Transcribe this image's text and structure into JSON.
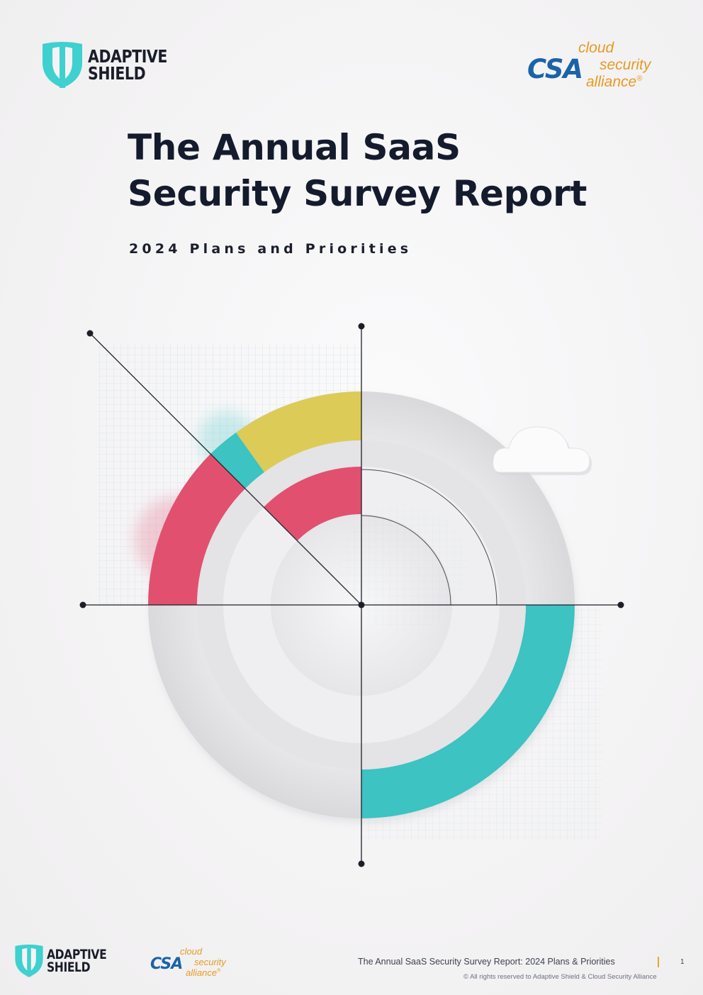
{
  "header": {
    "adaptive_shield_logo": {
      "line1": "ADAPTIVE",
      "line2": "SHIELD"
    },
    "csa_logo": {
      "mark": "CSA",
      "word1": "cloud",
      "word2": "security",
      "word3": "alliance",
      "registered": "®"
    }
  },
  "cover": {
    "title_line1": "The Annual SaaS",
    "title_line2": "Security Survey Report",
    "subtitle": "2024 Plans and Priorities"
  },
  "colors": {
    "title": "#141b2d",
    "pink": "#e2506f",
    "teal": "#3cc3c2",
    "yellow": "#dccb57",
    "csa_blue": "#1b63a8",
    "csa_orange": "#e79a23",
    "shield_teal": "#3fd0d0"
  },
  "footer": {
    "adaptive_shield_logo": {
      "line1": "ADAPTIVE",
      "line2": "SHIELD"
    },
    "csa_logo": {
      "mark": "CSA",
      "word1": "cloud",
      "word2": "security",
      "word3": "alliance",
      "registered": "®"
    },
    "report_title": "The Annual SaaS Security Survey Report: 2024 Plans & Priorities",
    "page_number": "1",
    "copyright": "© All rights reserved to Adaptive Shield & Cloud Security Alliance"
  }
}
